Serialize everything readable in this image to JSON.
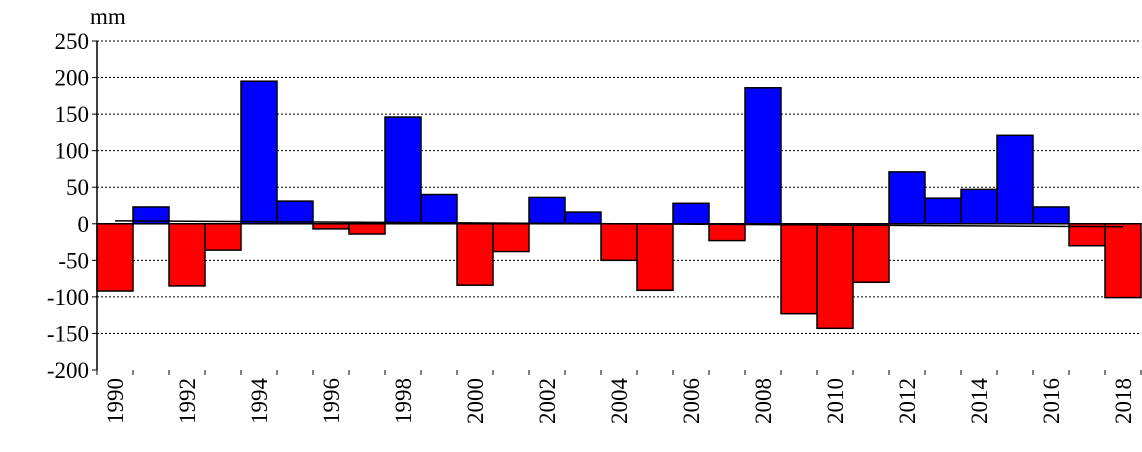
{
  "chart_data": {
    "type": "bar",
    "y_label": "mm",
    "categories": [
      "1990",
      null,
      "1992",
      null,
      "1994",
      null,
      "1996",
      null,
      "1998",
      null,
      "2000",
      null,
      "2002",
      null,
      "2004",
      null,
      "2006",
      null,
      "2008",
      null,
      "2010",
      null,
      "2012",
      null,
      "2014",
      null,
      "2016",
      null,
      "2018"
    ],
    "values": [
      -92,
      23,
      -85,
      -36,
      195,
      31,
      -7,
      -14,
      146,
      40,
      -84,
      -38,
      36,
      16,
      -50,
      -91,
      28,
      -23,
      186,
      -123,
      -143,
      -80,
      71,
      35,
      47,
      121,
      23,
      -30,
      -101
    ],
    "positive_color": "#0000ff",
    "negative_color": "#ff0000",
    "trend": [
      4,
      -4
    ],
    "trend_color": "#000000",
    "ylim": [
      -200,
      250
    ],
    "yticks": [
      -200,
      -150,
      -100,
      -50,
      0,
      50,
      100,
      150,
      200,
      250
    ],
    "grid": true
  }
}
